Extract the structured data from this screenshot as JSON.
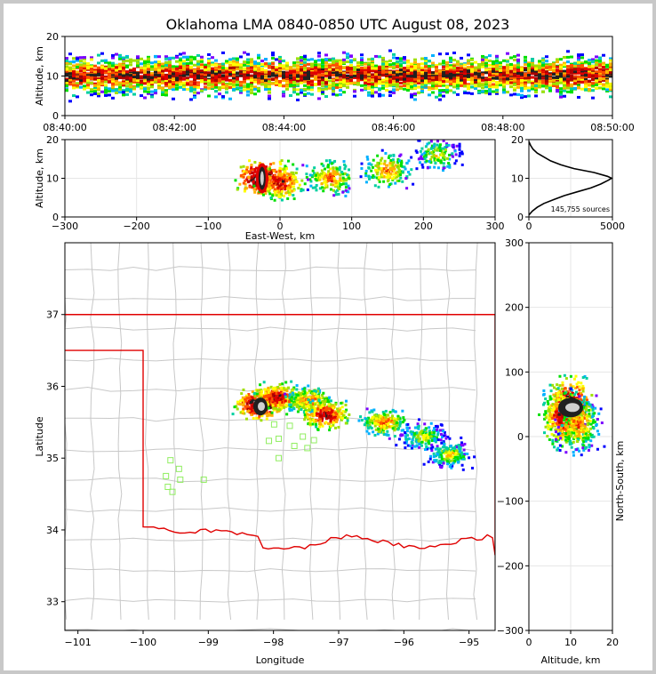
{
  "chart_data": [
    {
      "type": "heatmap",
      "panel": "time-altitude",
      "title": "Oklahoma LMA 0840-0850 UTC August 08, 2023",
      "ylabel": "Altitude, km",
      "xlabel": "",
      "x_ticks": [
        "08:40:00",
        "08:42:00",
        "08:44:00",
        "08:46:00",
        "08:48:00",
        "08:50:00"
      ],
      "y_ticks": [
        "0",
        "10",
        "20"
      ],
      "xlim": [
        "08:40:00",
        "08:50:00"
      ],
      "ylim": [
        0,
        20
      ],
      "source_band_altitude_km": [
        2,
        18
      ],
      "peak_altitude_km": 10
    },
    {
      "type": "heatmap",
      "panel": "east-west-altitude",
      "xlabel": "East-West, km",
      "ylabel": "Altitude, km",
      "x_ticks": [
        "−300",
        "−200",
        "−100",
        "0",
        "100",
        "200",
        "300"
      ],
      "y_ticks": [
        "0",
        "10",
        "20"
      ],
      "xlim": [
        -300,
        300
      ],
      "ylim": [
        0,
        20
      ],
      "clusters": [
        {
          "x_km": -25,
          "alt_km": 10,
          "density": "max"
        },
        {
          "x_km": 0,
          "alt_km": 9,
          "density": "high"
        },
        {
          "x_km": 70,
          "alt_km": 10,
          "density": "medium"
        },
        {
          "x_km": 150,
          "alt_km": 12,
          "density": "medium"
        },
        {
          "x_km": 220,
          "alt_km": 16,
          "density": "low"
        }
      ]
    },
    {
      "type": "line",
      "panel": "altitude-histogram",
      "annotation": "145,755 sources",
      "x_ticks": [
        "0",
        "5000"
      ],
      "y_ticks": [
        "0",
        "10",
        "20"
      ],
      "xlim": [
        0,
        5000
      ],
      "ylim": [
        0,
        20
      ],
      "x": [
        0,
        200,
        500,
        900,
        1500,
        2100,
        2900,
        3700,
        4300,
        4750,
        4950,
        4700,
        3900,
        2700,
        1900,
        1300,
        900,
        500,
        250,
        100,
        0
      ],
      "y": [
        0.5,
        1.5,
        2.5,
        3.5,
        4.5,
        5.5,
        6.5,
        7.5,
        8.5,
        9.5,
        10,
        10.5,
        11.5,
        12.5,
        13.5,
        14.5,
        15.5,
        16.5,
        17.5,
        18.5,
        19.5
      ]
    },
    {
      "type": "heatmap",
      "panel": "plan-view-map",
      "xlabel": "Longitude",
      "ylabel": "Latitude",
      "x_ticks": [
        "−101",
        "−100",
        "−99",
        "−98",
        "−97",
        "−96",
        "−95"
      ],
      "y_ticks": [
        "33",
        "34",
        "35",
        "36",
        "37"
      ],
      "xlim": [
        -101.2,
        -94.6
      ],
      "ylim": [
        32.6,
        38.0
      ],
      "clusters": [
        {
          "lon": -98.2,
          "lat": 35.75,
          "density": "max"
        },
        {
          "lon": -97.95,
          "lat": 35.85,
          "density": "high"
        },
        {
          "lon": -97.45,
          "lat": 35.8,
          "density": "medium"
        },
        {
          "lon": -97.2,
          "lat": 35.6,
          "density": "high"
        },
        {
          "lon": -96.3,
          "lat": 35.5,
          "density": "medium"
        },
        {
          "lon": -95.7,
          "lat": 35.3,
          "density": "low"
        },
        {
          "lon": -95.3,
          "lat": 35.05,
          "density": "low"
        }
      ],
      "stations": [
        {
          "lon": -99.58,
          "lat": 34.97
        },
        {
          "lon": -99.45,
          "lat": 34.85
        },
        {
          "lon": -99.65,
          "lat": 34.75
        },
        {
          "lon": -99.43,
          "lat": 34.7
        },
        {
          "lon": -99.62,
          "lat": 34.6
        },
        {
          "lon": -99.55,
          "lat": 34.53
        },
        {
          "lon": -99.07,
          "lat": 34.7
        },
        {
          "lon": -97.99,
          "lat": 35.47
        },
        {
          "lon": -98.07,
          "lat": 35.24
        },
        {
          "lon": -97.92,
          "lat": 35.27
        },
        {
          "lon": -97.75,
          "lat": 35.45
        },
        {
          "lon": -97.68,
          "lat": 35.17
        },
        {
          "lon": -97.55,
          "lat": 35.3
        },
        {
          "lon": -97.38,
          "lat": 35.25
        },
        {
          "lon": -97.48,
          "lat": 35.14
        },
        {
          "lon": -97.92,
          "lat": 35.0
        }
      ],
      "colors": {
        "state_border": "#e00000",
        "county_lines": "#c8c8c8",
        "stations": "#90ee60"
      }
    },
    {
      "type": "heatmap",
      "panel": "north-south-altitude",
      "xlabel": "Altitude, km",
      "ylabel": "North-South, km",
      "x_ticks": [
        "0",
        "10",
        "20"
      ],
      "y_ticks": [
        "−300",
        "−200",
        "−100",
        "0",
        "100",
        "200",
        "300"
      ],
      "xlim": [
        0,
        20
      ],
      "ylim": [
        -300,
        300
      ],
      "clusters": [
        {
          "alt_km": 10,
          "ns_km": 45,
          "density": "max"
        },
        {
          "alt_km": 8,
          "ns_km": 30,
          "density": "high"
        },
        {
          "alt_km": 12,
          "ns_km": 20,
          "density": "medium"
        }
      ]
    }
  ]
}
